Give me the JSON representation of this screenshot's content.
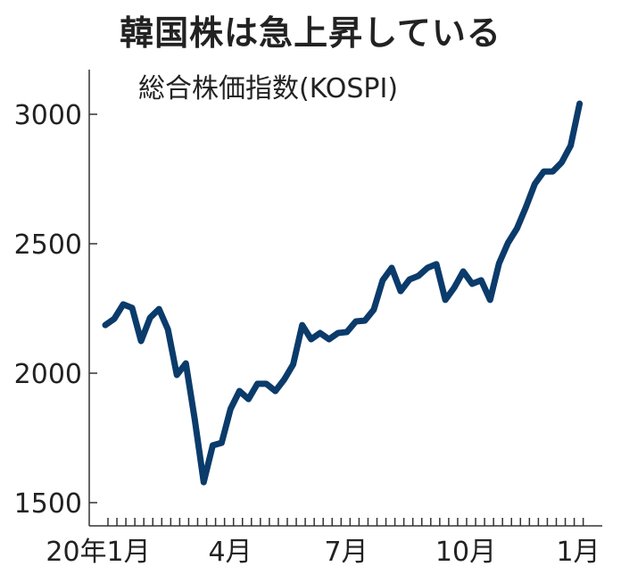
{
  "chart_data": {
    "type": "line",
    "title": "韓国株は急上昇している",
    "subtitle": "総合株価指数(KOSPI)",
    "xlabel": "",
    "ylabel": "",
    "ylim": [
      1500,
      3100
    ],
    "yticks": [
      1500,
      2000,
      2500,
      3000
    ],
    "grid": false,
    "legend": null,
    "x_tick_labels": [
      {
        "label": "20年1月",
        "week_index": 0
      },
      {
        "label": "4月",
        "week_index": 13
      },
      {
        "label": "7月",
        "week_index": 26
      },
      {
        "label": "10月",
        "week_index": 39
      },
      {
        "label": "1月",
        "week_index": 52
      }
    ],
    "minor_ticks": "weekly",
    "line_color": "#0a3b6b",
    "series": [
      {
        "name": "KOSPI",
        "values": [
          2186,
          2210,
          2266,
          2252,
          2124,
          2214,
          2248,
          2169,
          1993,
          2038,
          1821,
          1579,
          1721,
          1731,
          1862,
          1931,
          1900,
          1959,
          1959,
          1931,
          1976,
          2034,
          2186,
          2131,
          2155,
          2131,
          2155,
          2159,
          2200,
          2203,
          2245,
          2359,
          2407,
          2317,
          2362,
          2376,
          2407,
          2421,
          2283,
          2331,
          2393,
          2345,
          2359,
          2283,
          2424,
          2503,
          2559,
          2641,
          2731,
          2779,
          2779,
          2814,
          2879,
          3041
        ]
      }
    ]
  }
}
